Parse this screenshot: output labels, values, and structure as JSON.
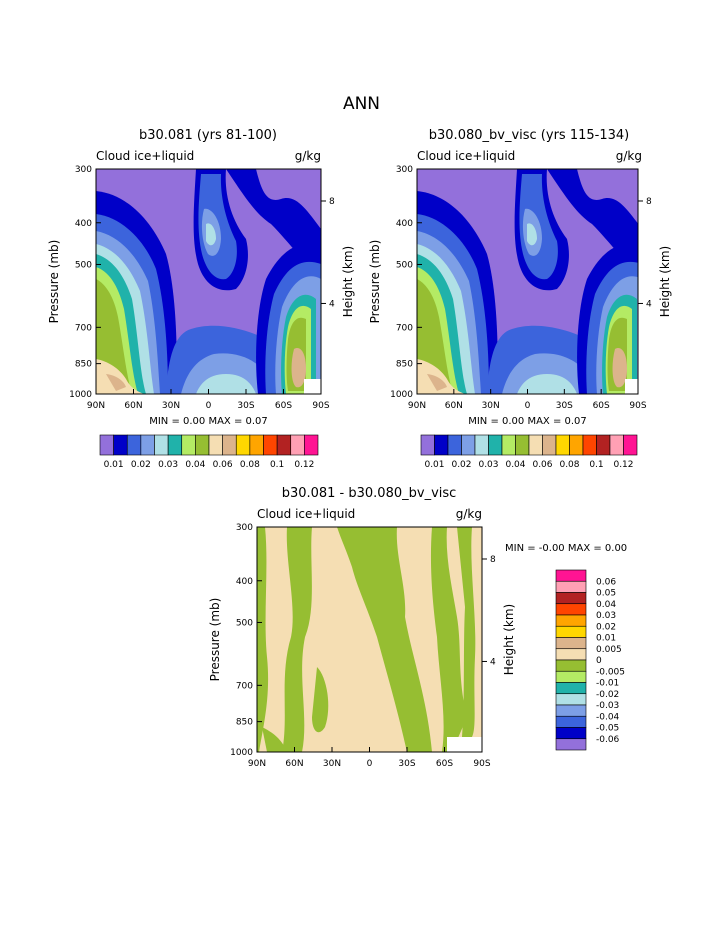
{
  "page_title": "ANN",
  "colors": {
    "upper_palette": [
      "#9370db",
      "#0000c8",
      "#3c64dc",
      "#7d9fe6",
      "#b0e0e6",
      "#20b2aa",
      "#b4eb64",
      "#96be32",
      "#f5deb3",
      "#dcb48c",
      "#ffd700",
      "#ffa500",
      "#ff4500",
      "#b22222",
      "#ffa0b4",
      "#ff1493"
    ],
    "diff_palette": [
      "#9370db",
      "#0000c8",
      "#3c64dc",
      "#7d9fe6",
      "#b0e0e6",
      "#20b2aa",
      "#b4eb64",
      "#96be32",
      "#f5deb3",
      "#dcb48c",
      "#ffd700",
      "#ffa500",
      "#ff4500",
      "#b22222",
      "#ffa0b4",
      "#ff1493"
    ]
  },
  "chart_data": [
    {
      "type": "heatmap",
      "title": "b30.081 (yrs 81-100)",
      "subtitle_left": "Cloud ice+liquid",
      "subtitle_right": "g/kg",
      "xlabel": "",
      "ylabel": "Pressure (mb)",
      "ylabel_right": "Height (km)",
      "x_ticks": [
        "90N",
        "60N",
        "30N",
        "0",
        "30S",
        "60S",
        "90S"
      ],
      "y_ticks": [
        "300",
        "400",
        "500",
        "700",
        "850",
        "1000"
      ],
      "y_ticks_right": [
        "8",
        "4"
      ],
      "min_label": "MIN =",
      "min_value": "0.00",
      "max_label": "MAX =",
      "max_value": "0.07",
      "colorbar_labels": [
        "0.01",
        "0.02",
        "0.03",
        "0.04",
        "0.06",
        "0.08",
        "0.1",
        "0.12"
      ],
      "colorbar_levels": [
        0.01,
        0.015,
        0.02,
        0.025,
        0.03,
        0.035,
        0.04,
        0.05,
        0.06,
        0.07,
        0.08,
        0.09,
        0.1,
        0.11,
        0.12
      ]
    },
    {
      "type": "heatmap",
      "title": "b30.080_bv_visc (yrs 115-134)",
      "subtitle_left": "Cloud ice+liquid",
      "subtitle_right": "g/kg",
      "xlabel": "",
      "ylabel": "Pressure (mb)",
      "ylabel_right": "Height (km)",
      "x_ticks": [
        "90N",
        "60N",
        "30N",
        "0",
        "30S",
        "60S",
        "90S"
      ],
      "y_ticks": [
        "300",
        "400",
        "500",
        "700",
        "850",
        "1000"
      ],
      "y_ticks_right": [
        "8",
        "4"
      ],
      "min_label": "MIN =",
      "min_value": "0.00",
      "max_label": "MAX =",
      "max_value": "0.07",
      "colorbar_labels": [
        "0.01",
        "0.02",
        "0.03",
        "0.04",
        "0.06",
        "0.08",
        "0.1",
        "0.12"
      ],
      "colorbar_levels": [
        0.01,
        0.015,
        0.02,
        0.025,
        0.03,
        0.035,
        0.04,
        0.05,
        0.06,
        0.07,
        0.08,
        0.09,
        0.1,
        0.11,
        0.12
      ]
    },
    {
      "type": "heatmap",
      "title": "b30.081 - b30.080_bv_visc",
      "subtitle_left": "Cloud ice+liquid",
      "subtitle_right": "g/kg",
      "xlabel": "",
      "ylabel": "Pressure (mb)",
      "ylabel_right": "Height (km)",
      "x_ticks": [
        "90N",
        "60N",
        "30N",
        "0",
        "30S",
        "60S",
        "90S"
      ],
      "y_ticks": [
        "300",
        "400",
        "500",
        "700",
        "850",
        "1000"
      ],
      "y_ticks_right": [
        "8",
        "4"
      ],
      "min_label": "MIN =",
      "min_value": "-0.00",
      "max_label": "MAX =",
      "max_value": "0.00",
      "colorbar_labels": [
        "0.06",
        "0.05",
        "0.04",
        "0.03",
        "0.02",
        "0.01",
        "0.005",
        "0",
        "-0.005",
        "-0.01",
        "-0.02",
        "-0.03",
        "-0.04",
        "-0.05",
        "-0.06"
      ],
      "colorbar_levels": [
        -0.06,
        -0.05,
        -0.04,
        -0.03,
        -0.02,
        -0.01,
        -0.005,
        0,
        0.005,
        0.01,
        0.02,
        0.03,
        0.04,
        0.05,
        0.06
      ]
    }
  ]
}
